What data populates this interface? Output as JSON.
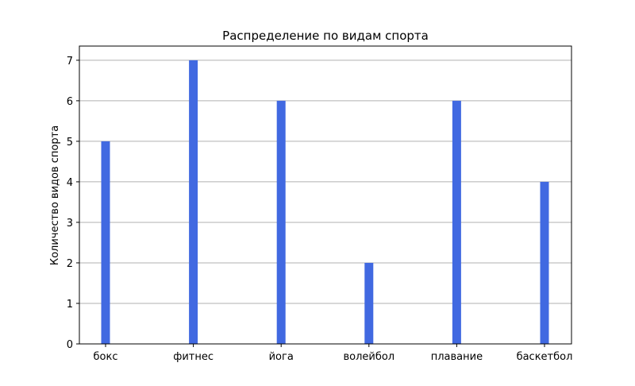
{
  "chart_data": {
    "type": "bar",
    "title": "Распределение по видам спорта",
    "xlabel": "",
    "ylabel": "Количество видов спорта",
    "categories": [
      "бокс",
      "фитнес",
      "йога",
      "волейбол",
      "плавание",
      "баскетбол"
    ],
    "values": [
      5,
      7,
      6,
      2,
      6,
      4
    ],
    "ylim": [
      0,
      7.35
    ],
    "yticks": [
      0,
      1,
      2,
      3,
      4,
      5,
      6,
      7
    ],
    "grid": "y",
    "bar_color": "#4169e1"
  }
}
